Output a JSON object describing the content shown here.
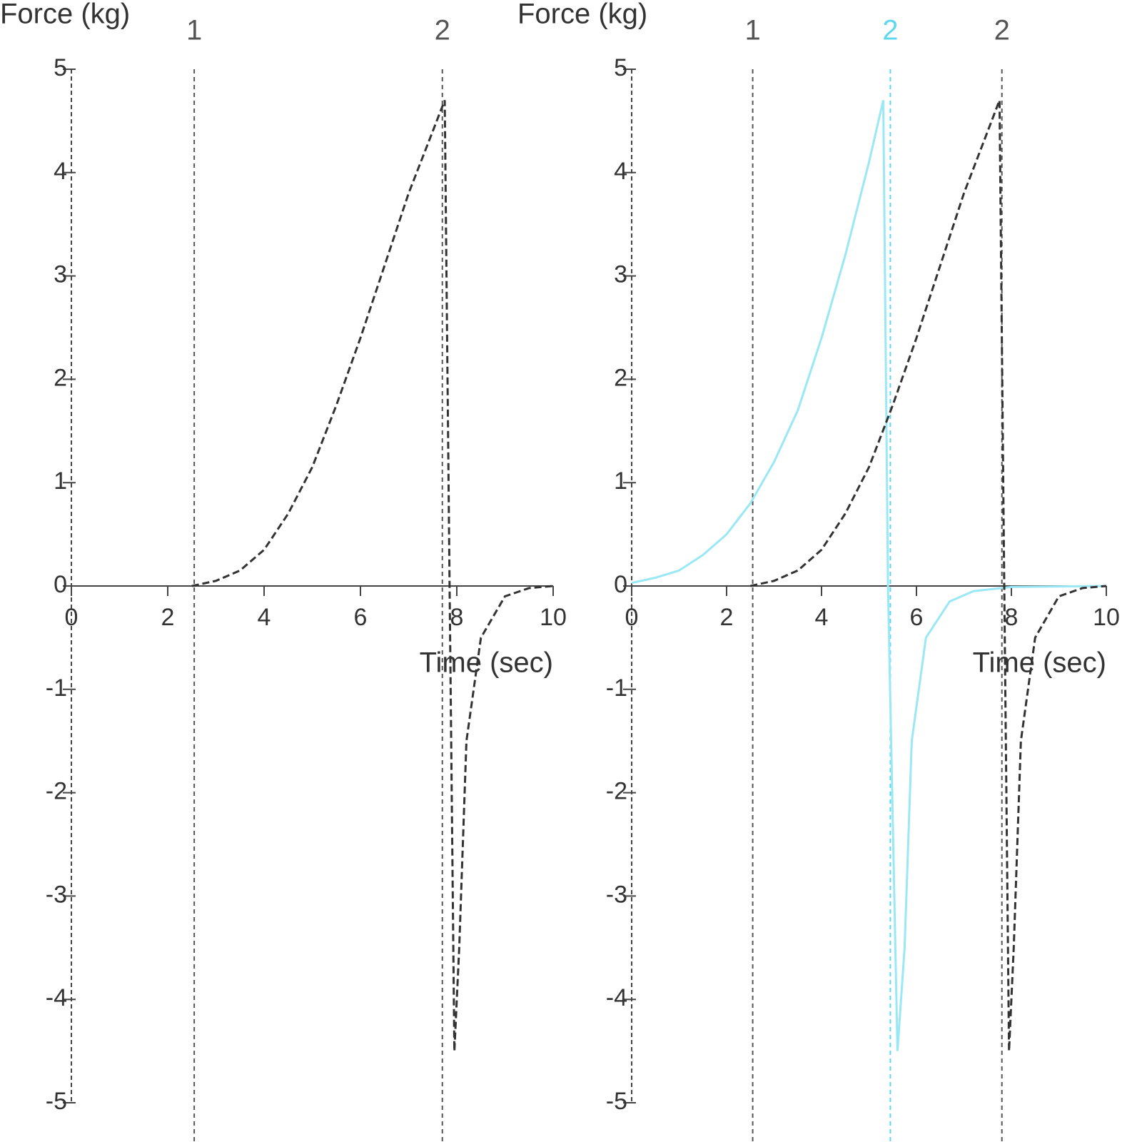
{
  "chart_data": [
    {
      "type": "line",
      "ylabel": "Force (kg)",
      "xlabel": "Time (sec)",
      "xlim": [
        0,
        10
      ],
      "ylim": [
        -5,
        5
      ],
      "xticks": [
        0,
        2,
        4,
        6,
        8,
        10
      ],
      "yticks": [
        -5,
        -4,
        -3,
        -2,
        -1,
        0,
        1,
        2,
        3,
        4,
        5
      ],
      "markers": [
        {
          "x": 2.55,
          "label": "1",
          "color": "#555555"
        },
        {
          "x": 7.7,
          "label": "2",
          "color": "#555555"
        }
      ],
      "series": [
        {
          "color": "#333333",
          "dash": true,
          "x": [
            2.5,
            3,
            3.5,
            4,
            4.5,
            5,
            5.5,
            6,
            6.5,
            7,
            7.5,
            7.75,
            7.85,
            7.95,
            8.05,
            8.2,
            8.5,
            9,
            9.5,
            10
          ],
          "values": [
            0,
            0.05,
            0.15,
            0.35,
            0.7,
            1.15,
            1.75,
            2.4,
            3.1,
            3.8,
            4.4,
            4.7,
            0,
            -4.5,
            -3.5,
            -1.5,
            -0.5,
            -0.1,
            -0.02,
            0
          ]
        }
      ]
    },
    {
      "type": "line",
      "ylabel": "Force (kg)",
      "xlabel": "Time (sec)",
      "xlim": [
        0,
        10
      ],
      "ylim": [
        -5,
        5
      ],
      "xticks": [
        0,
        2,
        4,
        6,
        8,
        10
      ],
      "yticks": [
        -5,
        -4,
        -3,
        -2,
        -1,
        0,
        1,
        2,
        3,
        4,
        5
      ],
      "markers": [
        {
          "x": 2.55,
          "label": "1",
          "color": "#555555"
        },
        {
          "x": 5.45,
          "label": "2",
          "color": "#5fd8ee"
        },
        {
          "x": 7.8,
          "label": "2",
          "color": "#555555"
        }
      ],
      "series": [
        {
          "color": "#9ae8f5",
          "dash": false,
          "x": [
            0,
            0.5,
            1,
            1.5,
            2,
            2.5,
            3,
            3.5,
            4,
            4.5,
            5,
            5.3,
            5.4,
            5.6,
            5.75,
            5.9,
            6.2,
            6.7,
            7.2,
            8,
            10
          ],
          "values": [
            0.03,
            0.08,
            0.15,
            0.3,
            0.5,
            0.8,
            1.2,
            1.7,
            2.4,
            3.2,
            4.1,
            4.7,
            0,
            -4.5,
            -3.5,
            -1.5,
            -0.5,
            -0.15,
            -0.05,
            -0.01,
            0
          ]
        },
        {
          "color": "#333333",
          "dash": true,
          "x": [
            2.5,
            3,
            3.5,
            4,
            4.5,
            5,
            5.5,
            6,
            6.5,
            7,
            7.5,
            7.75,
            7.85,
            7.95,
            8.05,
            8.2,
            8.5,
            9,
            9.5,
            10
          ],
          "values": [
            0,
            0.05,
            0.15,
            0.35,
            0.7,
            1.15,
            1.75,
            2.4,
            3.1,
            3.8,
            4.4,
            4.7,
            0,
            -4.5,
            -3.5,
            -1.5,
            -0.5,
            -0.1,
            -0.02,
            0
          ]
        }
      ]
    }
  ]
}
